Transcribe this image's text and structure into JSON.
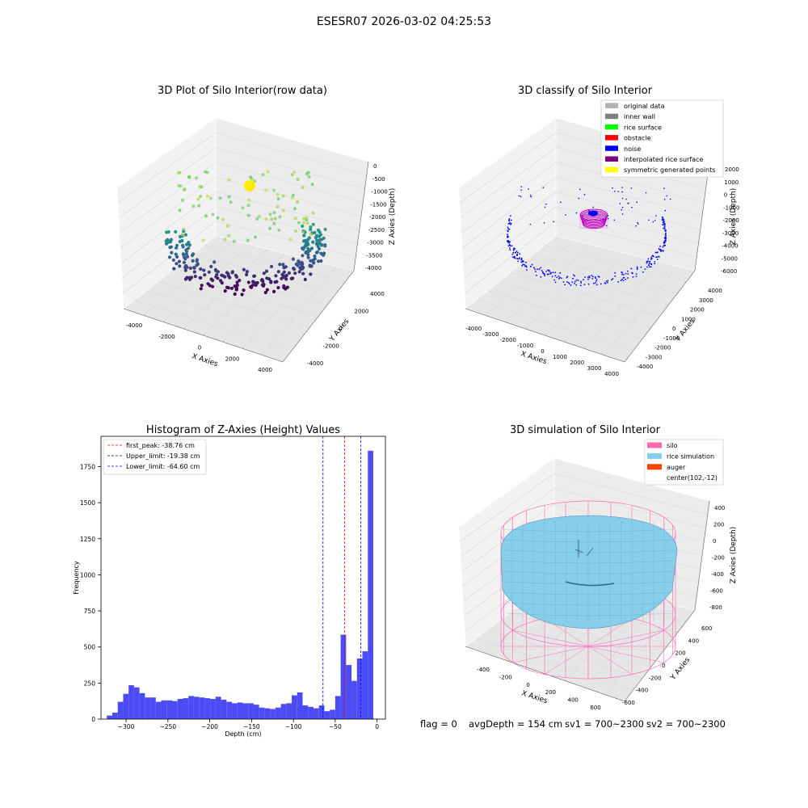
{
  "figure": {
    "suptitle": "ESESR07 2026-03-02 04:25:53",
    "footer": {
      "flag": "flag = 0",
      "avg_depth": "avgDepth = 154 cm",
      "sv1": "sv1 = 700~2300",
      "sv2": "sv2 = 700~2300"
    }
  },
  "colors": {
    "grey_pane": "#f2f2f2",
    "grid": "#d9d9d9",
    "hist_bar": "#4c4cf5",
    "peak_line": "#ff0000",
    "limit_line": "#0000ff",
    "noise": "#0000ff",
    "interp": "#c000c0",
    "silo": "#ff69b4",
    "rice": "#87ceeb",
    "auger": "#ff4500",
    "yellow": "#ffeb00"
  },
  "chart_data": [
    {
      "type": "scatter",
      "projection": "3d",
      "title": "3D Plot of Silo Interior(row data)",
      "xlabel": "X Axies",
      "ylabel": "Y Axies",
      "zlabel": "Z Axies (Depth)",
      "xticks": [
        "-4000",
        "-2000",
        "0",
        "2000",
        "4000"
      ],
      "yticks": [
        "-4000",
        "-2000",
        "0",
        "2000",
        "4000"
      ],
      "zticks": [
        "0",
        "-500",
        "-1000",
        "-1500",
        "-2000",
        "-2500",
        "-3000",
        "-3500",
        "-4000"
      ],
      "colormap": "viridis",
      "grid": true
    },
    {
      "type": "scatter",
      "projection": "3d",
      "title": "3D classify of Silo Interior",
      "xlabel": "X Axies",
      "ylabel": "Y Axies",
      "zlabel": "Z Axies (Depth)",
      "xticks": [
        "-4000",
        "-3000",
        "-2000",
        "-1000",
        "0",
        "1000",
        "2000",
        "3000",
        "4000"
      ],
      "yticks": [
        "-4000",
        "-3000",
        "-2000",
        "-1000",
        "0",
        "1000",
        "2000",
        "3000",
        "4000"
      ],
      "zticks": [
        "2000",
        "1000",
        "0",
        "-1000",
        "-2000",
        "-3000",
        "-4000",
        "-5000",
        "-6000"
      ],
      "legend": [
        {
          "label": "original data",
          "color": "#b3b3b3"
        },
        {
          "label": "inner wall",
          "color": "#808080"
        },
        {
          "label": "rice surface",
          "color": "#00ff00"
        },
        {
          "label": "obstacle",
          "color": "#ff0000"
        },
        {
          "label": "noise",
          "color": "#0000ff"
        },
        {
          "label": "interpolated rice surface",
          "color": "#800080"
        },
        {
          "label": "symmetric generated points",
          "color": "#ffff00"
        }
      ],
      "legend_position": "top-right",
      "grid": true
    },
    {
      "type": "bar",
      "title": "Histogram of Z-Axies (Height) Values",
      "xlabel": "Depth (cm)",
      "ylabel": "Frequency",
      "xlim": [
        -330,
        10
      ],
      "ylim": [
        0,
        1960
      ],
      "xticks": [
        -300,
        -250,
        -200,
        -150,
        -100,
        -50,
        0
      ],
      "yticks": [
        0,
        250,
        500,
        750,
        1000,
        1250,
        1500,
        1750
      ],
      "bin_width": 6.5,
      "bin_start": -323,
      "values": [
        25,
        45,
        120,
        175,
        235,
        220,
        180,
        150,
        150,
        120,
        130,
        130,
        125,
        140,
        145,
        160,
        155,
        150,
        145,
        140,
        155,
        135,
        120,
        110,
        115,
        110,
        110,
        100,
        80,
        75,
        70,
        80,
        105,
        110,
        165,
        185,
        95,
        85,
        75,
        95,
        55,
        65,
        160,
        585,
        375,
        265,
        420,
        470,
        1860
      ],
      "lines": [
        {
          "label": "first_peak: -38.76 cm",
          "x": -38.76,
          "color": "#ff0000"
        },
        {
          "label": "Upper_limit: -19.38 cm",
          "x": -19.38,
          "color": "#0000ff"
        },
        {
          "label": "Lower_limit: -64.60 cm",
          "x": -64.6,
          "color": "#0000ff"
        }
      ],
      "legend_position": "top-left"
    },
    {
      "type": "surface",
      "projection": "3d",
      "title": "3D simulation of Silo Interior",
      "xlabel": "X Axies",
      "ylabel": "Y Axies",
      "zlabel": "Z Axies (Depth)",
      "xticks": [
        "-400",
        "-200",
        "0",
        "200",
        "400",
        "600"
      ],
      "yticks": [
        "-600",
        "-400",
        "-200",
        "0",
        "200",
        "400",
        "600"
      ],
      "zticks": [
        "400",
        "200",
        "0",
        "-200",
        "-400",
        "-600",
        "-800"
      ],
      "legend": [
        {
          "label": "silo",
          "color": "#ff69b4"
        },
        {
          "label": "rice simulation",
          "color": "#87ceeb"
        },
        {
          "label": "auger",
          "color": "#ff4500"
        },
        {
          "label": "center(102,-12)",
          "color": ""
        }
      ],
      "legend_position": "top-right"
    }
  ]
}
